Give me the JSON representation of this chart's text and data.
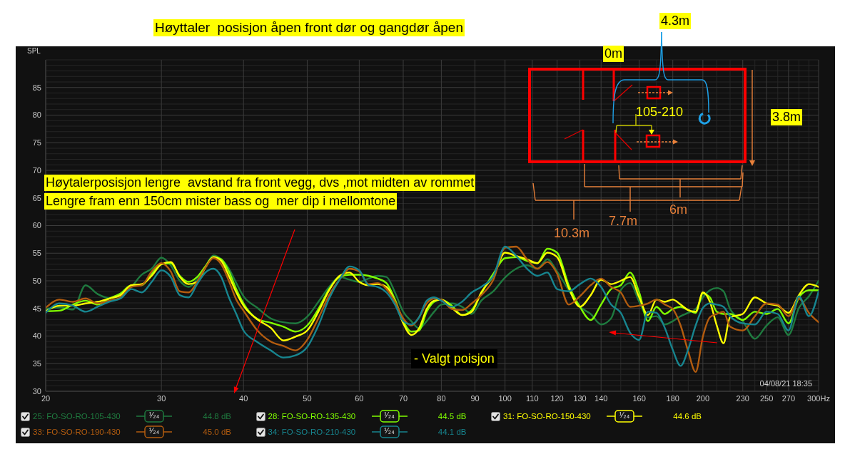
{
  "chart_data": {
    "type": "line",
    "title": "Høyttaler  posisjon åpen front dør og gangdør åpen",
    "ylabel": "SPL",
    "x": [
      20,
      21,
      22,
      23,
      24,
      25,
      26,
      27,
      28,
      29,
      30,
      31,
      32,
      33,
      34,
      35,
      36,
      37,
      38,
      39,
      40,
      42,
      44,
      46,
      48,
      50,
      52,
      54,
      56,
      58,
      60,
      62,
      64,
      66,
      68,
      70,
      72,
      74,
      76,
      78,
      80,
      83,
      86,
      89,
      92,
      96,
      100,
      104,
      108,
      112,
      116,
      120,
      125,
      130,
      135,
      140,
      145,
      150,
      155,
      160,
      165,
      170,
      175,
      180,
      185,
      190,
      195,
      200,
      205,
      210,
      215,
      220,
      230,
      240,
      250,
      260,
      270,
      280,
      290,
      300
    ],
    "series": [
      {
        "name": "25: FO-SO-RO-105-430",
        "color": "#1f7a3f",
        "values": [
          44.9,
          45.2,
          44.8,
          49.2,
          47.6,
          46.9,
          47.4,
          48.9,
          51.1,
          52.2,
          54.2,
          52.8,
          50,
          48.9,
          50.2,
          52.6,
          54.6,
          53.9,
          52.2,
          49.6,
          47.2,
          45.1,
          43.2,
          42.5,
          42.3,
          43.5,
          46.2,
          48.9,
          50.7,
          50.2,
          49.8,
          50.4,
          50.9,
          50.7,
          47.9,
          44.4,
          42.7,
          41.4,
          42.7,
          44.4,
          45.7,
          45.9,
          45.3,
          44,
          46.4,
          48.1,
          50.6,
          52.2,
          52.8,
          52.2,
          53.9,
          51.7,
          48.3,
          45.3,
          44,
          42.1,
          43.2,
          48.3,
          49.6,
          46.2,
          43.4,
          43.6,
          42.1,
          42.7,
          43.6,
          44.2,
          44.9,
          47,
          48.3,
          48.7,
          48.1,
          44.9,
          42.7,
          39.5,
          41.9,
          43.4,
          40.2,
          45.1,
          47.2,
          50
        ]
      },
      {
        "name": "28: FO-SO-RO-135-430",
        "color": "#80ff00",
        "values": [
          44.5,
          44.6,
          45.7,
          46.4,
          45.7,
          46.8,
          47.7,
          49.2,
          49.2,
          51.3,
          53,
          53.2,
          50.9,
          49.8,
          50.7,
          52.6,
          54.3,
          53.9,
          51.7,
          48.5,
          45.9,
          43.1,
          42.4,
          41.7,
          40.8,
          41.9,
          44.9,
          48.5,
          50.7,
          51.1,
          51.1,
          50.9,
          50.4,
          49.6,
          46.6,
          42.7,
          40.8,
          41,
          44.4,
          46.2,
          46.6,
          45.5,
          43.8,
          44.7,
          47.7,
          51.3,
          54.1,
          54.3,
          53.6,
          53.2,
          55.8,
          55.1,
          49.2,
          45.3,
          42.9,
          45.7,
          48.5,
          49.2,
          51.5,
          47.9,
          42.7,
          45.3,
          44,
          44.9,
          45.3,
          44.7,
          44.2,
          47.7,
          47,
          44.4,
          44,
          44,
          42.9,
          44.4,
          44,
          44.9,
          42.3,
          47,
          48.3,
          48.3
        ]
      },
      {
        "name": "31: FO-SO-RO-150-430",
        "color": "#ffff00",
        "values": [
          44.5,
          45.5,
          45.5,
          45.9,
          46.2,
          46.8,
          47.4,
          49.2,
          49.4,
          50.9,
          53,
          53.4,
          50.7,
          49.4,
          49.8,
          52.4,
          54.3,
          53.6,
          50.9,
          47.9,
          45.5,
          43,
          41.5,
          39.2,
          39.9,
          41,
          44.4,
          48.3,
          50.9,
          51.5,
          49.8,
          49.2,
          49.4,
          48.9,
          46.2,
          42.3,
          40.2,
          41.4,
          44.9,
          46.4,
          46.6,
          45.1,
          43.8,
          44.4,
          47.9,
          50.9,
          55.1,
          54.5,
          53.9,
          53.2,
          55.1,
          54.3,
          48.7,
          45.3,
          47.4,
          50.2,
          49.4,
          50,
          50.7,
          47,
          43.8,
          46.6,
          46.2,
          46.6,
          45.7,
          44.7,
          44.4,
          47.9,
          46.2,
          41.9,
          38.7,
          43.4,
          44,
          47,
          45.9,
          45.5,
          44.2,
          47.4,
          49.4,
          48.9
        ]
      },
      {
        "name": "33: FO-SO-RO-190-430",
        "color": "#b35c0f",
        "values": [
          45.1,
          46.6,
          46.2,
          46.8,
          45.9,
          46.4,
          47,
          48.9,
          49.2,
          51.7,
          53.2,
          51.7,
          48.1,
          47.9,
          49.8,
          52.4,
          54.1,
          53,
          50,
          46.6,
          44.6,
          41,
          39,
          38.2,
          37.4,
          39.3,
          43.2,
          47.4,
          50.2,
          52.2,
          51.7,
          49.4,
          49.6,
          48.5,
          46.2,
          43.2,
          41.9,
          43.4,
          45.9,
          46.8,
          46.6,
          44.9,
          44.7,
          45.9,
          47.4,
          50.2,
          56,
          56.2,
          53.9,
          52.2,
          53.4,
          51.3,
          45.7,
          47.2,
          49.2,
          50.4,
          48.9,
          47.9,
          45.3,
          45.5,
          45.9,
          46.6,
          45.7,
          44.9,
          41.9,
          37.2,
          33.5,
          39.9,
          43.4,
          44,
          44.4,
          41.7,
          41,
          43.6,
          45.9,
          45.7,
          43.6,
          46.8,
          44.2,
          42.5
        ]
      },
      {
        "name": "34: FO-SO-RO-210-430",
        "color": "#17858f",
        "values": [
          44.2,
          45.9,
          45.5,
          44.4,
          45.3,
          46.2,
          46.8,
          48.5,
          47.9,
          49.8,
          51.9,
          50.7,
          47.4,
          47,
          49.4,
          51.5,
          52.2,
          50.7,
          47,
          44,
          41,
          38.9,
          37.4,
          36.1,
          36.5,
          38,
          41.9,
          46.8,
          50.2,
          52.6,
          51.9,
          49.2,
          48.9,
          47.9,
          45.7,
          42.7,
          42.1,
          43.4,
          46.4,
          47,
          46.4,
          45.3,
          46.2,
          47.9,
          48.9,
          50.9,
          56.2,
          54.5,
          52.2,
          50.9,
          51.5,
          48.5,
          48.1,
          49.4,
          50.4,
          48.9,
          45.7,
          44.2,
          40.6,
          39.3,
          44.4,
          44.2,
          41.5,
          37.5,
          34.6,
          37.6,
          41.9,
          45.1,
          45.9,
          45.7,
          45.3,
          43.6,
          42.3,
          42.1,
          44.4,
          44,
          41,
          47.2,
          43.6,
          48.1
        ]
      }
    ],
    "xlim": [
      20,
      300
    ],
    "xticks": [
      20,
      30,
      40,
      50,
      60,
      70,
      80,
      90,
      100,
      110,
      120,
      130,
      140,
      {
        "value": 150,
        "label": null
      },
      160,
      {
        "value": 170,
        "label": null
      },
      180,
      {
        "value": 190,
        "label": null
      },
      200,
      {
        "value": 210,
        "label": null
      },
      {
        "value": 220,
        "label": null
      },
      230,
      {
        "value": 240,
        "label": null
      },
      250,
      {
        "value": 260,
        "label": null
      },
      270,
      {
        "value": 280,
        "label": null
      },
      {
        "value": 290,
        "label": null
      },
      {
        "value": 300,
        "label": "300Hz"
      }
    ],
    "ylim": [
      30,
      90
    ],
    "yticks": [
      30,
      {
        "value": 31,
        "label": null
      },
      {
        "value": 32,
        "label": null
      },
      {
        "value": 33,
        "label": null
      },
      {
        "value": 34,
        "label": null
      },
      35,
      {
        "value": 36,
        "label": null
      },
      {
        "value": 37,
        "label": null
      },
      {
        "value": 38,
        "label": null
      },
      {
        "value": 39,
        "label": null
      },
      40,
      {
        "value": 41,
        "label": null
      },
      {
        "value": 42,
        "label": null
      },
      {
        "value": 43,
        "label": null
      },
      {
        "value": 44,
        "label": null
      },
      45,
      {
        "value": 46,
        "label": null
      },
      {
        "value": 47,
        "label": null
      },
      {
        "value": 48,
        "label": null
      },
      {
        "value": 49,
        "label": null
      },
      50,
      {
        "value": 51,
        "label": null
      },
      {
        "value": 52,
        "label": null
      },
      {
        "value": 53,
        "label": null
      },
      {
        "value": 54,
        "label": null
      },
      55,
      {
        "value": 56,
        "label": null
      },
      {
        "value": 57,
        "label": null
      },
      {
        "value": 58,
        "label": null
      },
      {
        "value": 59,
        "label": null
      },
      60,
      {
        "value": 61,
        "label": null
      },
      {
        "value": 62,
        "label": null
      },
      {
        "value": 63,
        "label": null
      },
      {
        "value": 64,
        "label": null
      },
      65,
      {
        "value": 66,
        "label": null
      },
      {
        "value": 67,
        "label": null
      },
      {
        "value": 68,
        "label": null
      },
      {
        "value": 69,
        "label": null
      },
      70,
      {
        "value": 71,
        "label": null
      },
      {
        "value": 72,
        "label": null
      },
      {
        "value": 73,
        "label": null
      },
      {
        "value": 74,
        "label": null
      },
      75,
      {
        "value": 76,
        "label": null
      },
      {
        "value": 77,
        "label": null
      },
      {
        "value": 78,
        "label": null
      },
      {
        "value": 79,
        "label": null
      },
      80,
      {
        "value": 81,
        "label": null
      },
      {
        "value": 82,
        "label": null
      },
      {
        "value": 83,
        "label": null
      },
      {
        "value": 84,
        "label": null
      },
      85,
      {
        "value": 86,
        "label": null
      },
      {
        "value": 87,
        "label": null
      },
      {
        "value": 88,
        "label": null
      },
      {
        "value": 89,
        "label": null
      },
      {
        "value": 90,
        "label": null
      }
    ],
    "log": "x",
    "grid": true,
    "legend": "bottom",
    "annotations": [
      "Høytalerposisjon lengre  avstand fra front vegg, dvs ,mot midten av rommet",
      "Lengre fram enn 150cm mister bass og  mer dip i mellomtone",
      "- Valgt poisjon",
      "04/08/21 18:35",
      "4.3m",
      "0m",
      "105-210",
      "3.8m",
      "10.3m",
      "7.7m",
      "6m",
      "¹⁄₂₄",
      "¹⁄₂₄",
      "¹⁄₂₄",
      "¹⁄₂₄",
      "¹⁄₂₄",
      "44.8 dB",
      "44.5 dB",
      "44.6 dB",
      "45.0 dB",
      "44.1 dB"
    ]
  }
}
